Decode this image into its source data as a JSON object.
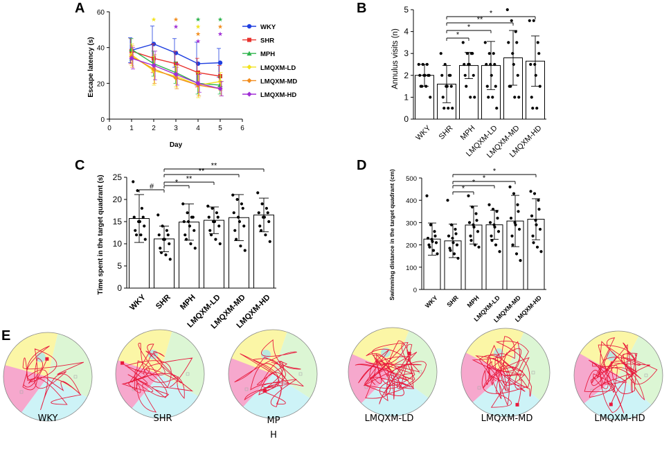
{
  "panels": {
    "A": "A",
    "B": "B",
    "C": "C",
    "D": "D",
    "E": "E"
  },
  "group_colors": {
    "WKY": "#1f3fe0",
    "SHR": "#e8332f",
    "MPH": "#2bb34a",
    "LMQXM-LD": "#f2e21c",
    "LMQXM-MD": "#f28c1c",
    "LMQXM-HD": "#a02ed6"
  },
  "chart_data": [
    {
      "id": "A",
      "type": "line",
      "title": "",
      "xlabel": "Day",
      "ylabel": "Escape latency (s)",
      "xlim": [
        0,
        6
      ],
      "ylim": [
        0,
        60
      ],
      "xticks": [
        "0",
        "1",
        "2",
        "3",
        "4",
        "5",
        "6"
      ],
      "yticks": [
        "0",
        "20",
        "40",
        "60"
      ],
      "x": [
        1,
        2,
        3,
        4,
        5
      ],
      "series": [
        {
          "name": "WKY",
          "values": [
            38.5,
            42,
            37,
            31,
            31.5
          ],
          "err": [
            7,
            10,
            8,
            12,
            8
          ]
        },
        {
          "name": "SHR",
          "values": [
            38,
            34,
            31,
            26,
            24
          ],
          "err": [
            7,
            8,
            7,
            8,
            6
          ]
        },
        {
          "name": "MPH",
          "values": [
            39,
            31,
            26,
            20,
            19
          ],
          "err": [
            6,
            7,
            6,
            6,
            5
          ]
        },
        {
          "name": "LMQXM-LD",
          "values": [
            36,
            27,
            24,
            19,
            21
          ],
          "err": [
            6,
            8,
            6,
            7,
            5
          ]
        },
        {
          "name": "LMQXM-MD",
          "values": [
            35,
            28,
            23,
            19,
            17
          ],
          "err": [
            6,
            8,
            6,
            6,
            4
          ]
        },
        {
          "name": "LMQXM-HD",
          "values": [
            34,
            30,
            25,
            20,
            17
          ],
          "err": [
            6,
            8,
            6,
            5,
            4
          ]
        }
      ],
      "star_rows": [
        {
          "day": 2,
          "stars": [
            "LMQXM-LD"
          ]
        },
        {
          "day": 3,
          "stars": [
            "LMQXM-MD",
            "LMQXM-HD"
          ]
        },
        {
          "day": 4,
          "stars": [
            "MPH",
            "LMQXM-LD",
            "LMQXM-MD",
            "LMQXM-HD"
          ]
        },
        {
          "day": 5,
          "stars": [
            "MPH",
            "LMQXM-MD",
            "LMQXM-HD"
          ]
        }
      ],
      "star_symbol": "★",
      "legend": [
        "WKY",
        "SHR",
        "MPH",
        "LMQXM-LD",
        "LMQXM-MD",
        "LMQXM-HD"
      ]
    },
    {
      "id": "B",
      "type": "bar",
      "title": "",
      "ylabel": "Annulus visits (n)",
      "ylim": [
        0,
        5
      ],
      "yticks": [
        "0",
        "1",
        "2",
        "3",
        "4",
        "5"
      ],
      "categories": [
        "WKY",
        "SHR",
        "MPH",
        "LMQXM-LD",
        "LMQXM-MD",
        "LMQXM-HD"
      ],
      "values": [
        2.0,
        1.6,
        2.45,
        2.45,
        2.8,
        2.65
      ],
      "err": [
        0.5,
        0.85,
        0.6,
        1.1,
        1.25,
        1.15
      ],
      "points": [
        [
          2.5,
          2.5,
          2.5,
          2.0,
          2.0,
          2.0,
          2.0,
          2.0,
          1.5,
          1.5,
          1.5,
          1.0
        ],
        [
          3.0,
          2.5,
          2.0,
          2.0,
          2.0,
          1.5,
          1.5,
          1.5,
          1.0,
          0.5,
          0.5,
          0.5
        ],
        [
          3.5,
          3.0,
          3.0,
          3.0,
          2.5,
          2.5,
          2.5,
          2.0,
          2.0,
          1.5,
          1.0,
          1.0
        ],
        [
          3.5,
          3.0,
          3.0,
          2.5,
          2.5,
          2.5,
          2.0,
          1.5,
          1.5,
          1.0,
          1.0,
          0.5
        ],
        [
          5.0,
          4.5,
          4.0,
          3.5,
          3.5,
          3.0,
          2.5,
          2.0,
          1.5,
          1.5,
          1.0,
          1.0
        ],
        [
          4.5,
          4.5,
          3.5,
          3.0,
          2.5,
          2.5,
          2.0,
          1.5,
          1.0,
          0.5,
          0.5
        ]
      ],
      "comparisons": [
        {
          "from": 1,
          "to": 2,
          "label": "*"
        },
        {
          "from": 1,
          "to": 3,
          "label": "*"
        },
        {
          "from": 1,
          "to": 4,
          "label": "**"
        },
        {
          "from": 1,
          "to": 5,
          "label": "*"
        }
      ]
    },
    {
      "id": "C",
      "type": "bar",
      "title": "",
      "ylabel": "Time spent in the target quadrant (s)",
      "ylim": [
        0,
        25
      ],
      "yticks": [
        "0",
        "5",
        "10",
        "15",
        "20",
        "25"
      ],
      "categories": [
        "WKY",
        "SHR",
        "MPH",
        "LMQXM-LD",
        "LMQXM-MD",
        "LMQXM-HD"
      ],
      "values": [
        15.7,
        11.1,
        14.9,
        15.3,
        15.9,
        16.5
      ],
      "err": [
        5.4,
        2.9,
        4.1,
        3.0,
        5.2,
        3.8
      ],
      "points": [
        [
          24,
          22,
          18,
          16,
          16,
          15,
          15,
          14,
          13,
          12,
          12,
          11
        ],
        [
          16.5,
          14,
          13,
          12,
          12,
          11,
          11,
          10,
          9,
          8,
          7.5,
          6.5
        ],
        [
          19,
          17,
          16,
          16,
          15,
          15,
          14,
          13,
          12,
          11,
          10,
          9
        ],
        [
          18.5,
          18,
          17,
          16,
          16,
          15,
          15,
          14,
          13,
          12,
          11,
          10
        ],
        [
          21,
          20,
          19,
          18,
          17,
          16,
          15,
          14,
          13,
          11,
          9.5,
          8.5
        ],
        [
          21.5,
          19,
          18,
          17,
          17,
          16,
          16,
          15,
          14,
          13,
          12,
          10.5
        ]
      ],
      "comparisons": [
        {
          "from": 0,
          "to": 1,
          "label": "#"
        },
        {
          "from": 1,
          "to": 2,
          "label": "*"
        },
        {
          "from": 1,
          "to": 3,
          "label": "**"
        },
        {
          "from": 1,
          "to": 4,
          "label": "**"
        },
        {
          "from": 1,
          "to": 5,
          "label": "**"
        }
      ]
    },
    {
      "id": "D",
      "type": "bar",
      "title": "",
      "ylabel": "Swimming distance in the target quadrant (cm)",
      "ylim": [
        0,
        500
      ],
      "yticks": [
        "0",
        "100",
        "200",
        "300",
        "400",
        "500"
      ],
      "categories": [
        "WKY",
        "SHR",
        "MPH",
        "LMQXM-LD",
        "LMQXM-MD",
        "LMQXM-HD"
      ],
      "values": [
        226,
        218,
        289,
        290,
        307,
        315
      ],
      "err": [
        72,
        75,
        85,
        65,
        115,
        92
      ],
      "points": [
        [
          420,
          290,
          260,
          240,
          230,
          225,
          215,
          210,
          200,
          190,
          175,
          160
        ],
        [
          400,
          290,
          270,
          250,
          240,
          230,
          210,
          200,
          185,
          175,
          160,
          140
        ],
        [
          420,
          370,
          340,
          310,
          300,
          290,
          280,
          260,
          240,
          220,
          200,
          190
        ],
        [
          380,
          360,
          350,
          320,
          300,
          290,
          280,
          260,
          240,
          220,
          200,
          170
        ],
        [
          460,
          430,
          380,
          350,
          320,
          300,
          290,
          270,
          240,
          200,
          160,
          130
        ],
        [
          440,
          430,
          400,
          360,
          330,
          310,
          290,
          270,
          240,
          210,
          190,
          170
        ]
      ],
      "comparisons": [
        {
          "from": 1,
          "to": 2,
          "label": "*"
        },
        {
          "from": 1,
          "to": 3,
          "label": "*"
        },
        {
          "from": 1,
          "to": 4,
          "label": "*"
        },
        {
          "from": 1,
          "to": 5,
          "label": "*"
        }
      ]
    }
  ],
  "tracks": {
    "labels": [
      "WKY",
      "SHR",
      "MP\nH",
      "LMQXM-LD",
      "LMQXM-MD",
      "LMQXM-HD"
    ],
    "quadrant_colors": {
      "yellow": "#fbf6a6",
      "green": "#dcf6d4",
      "blue": "#cdf3f7",
      "pink": "#f6a8cd",
      "platform": "#b9e8df"
    },
    "track_color": "#e8193c"
  }
}
